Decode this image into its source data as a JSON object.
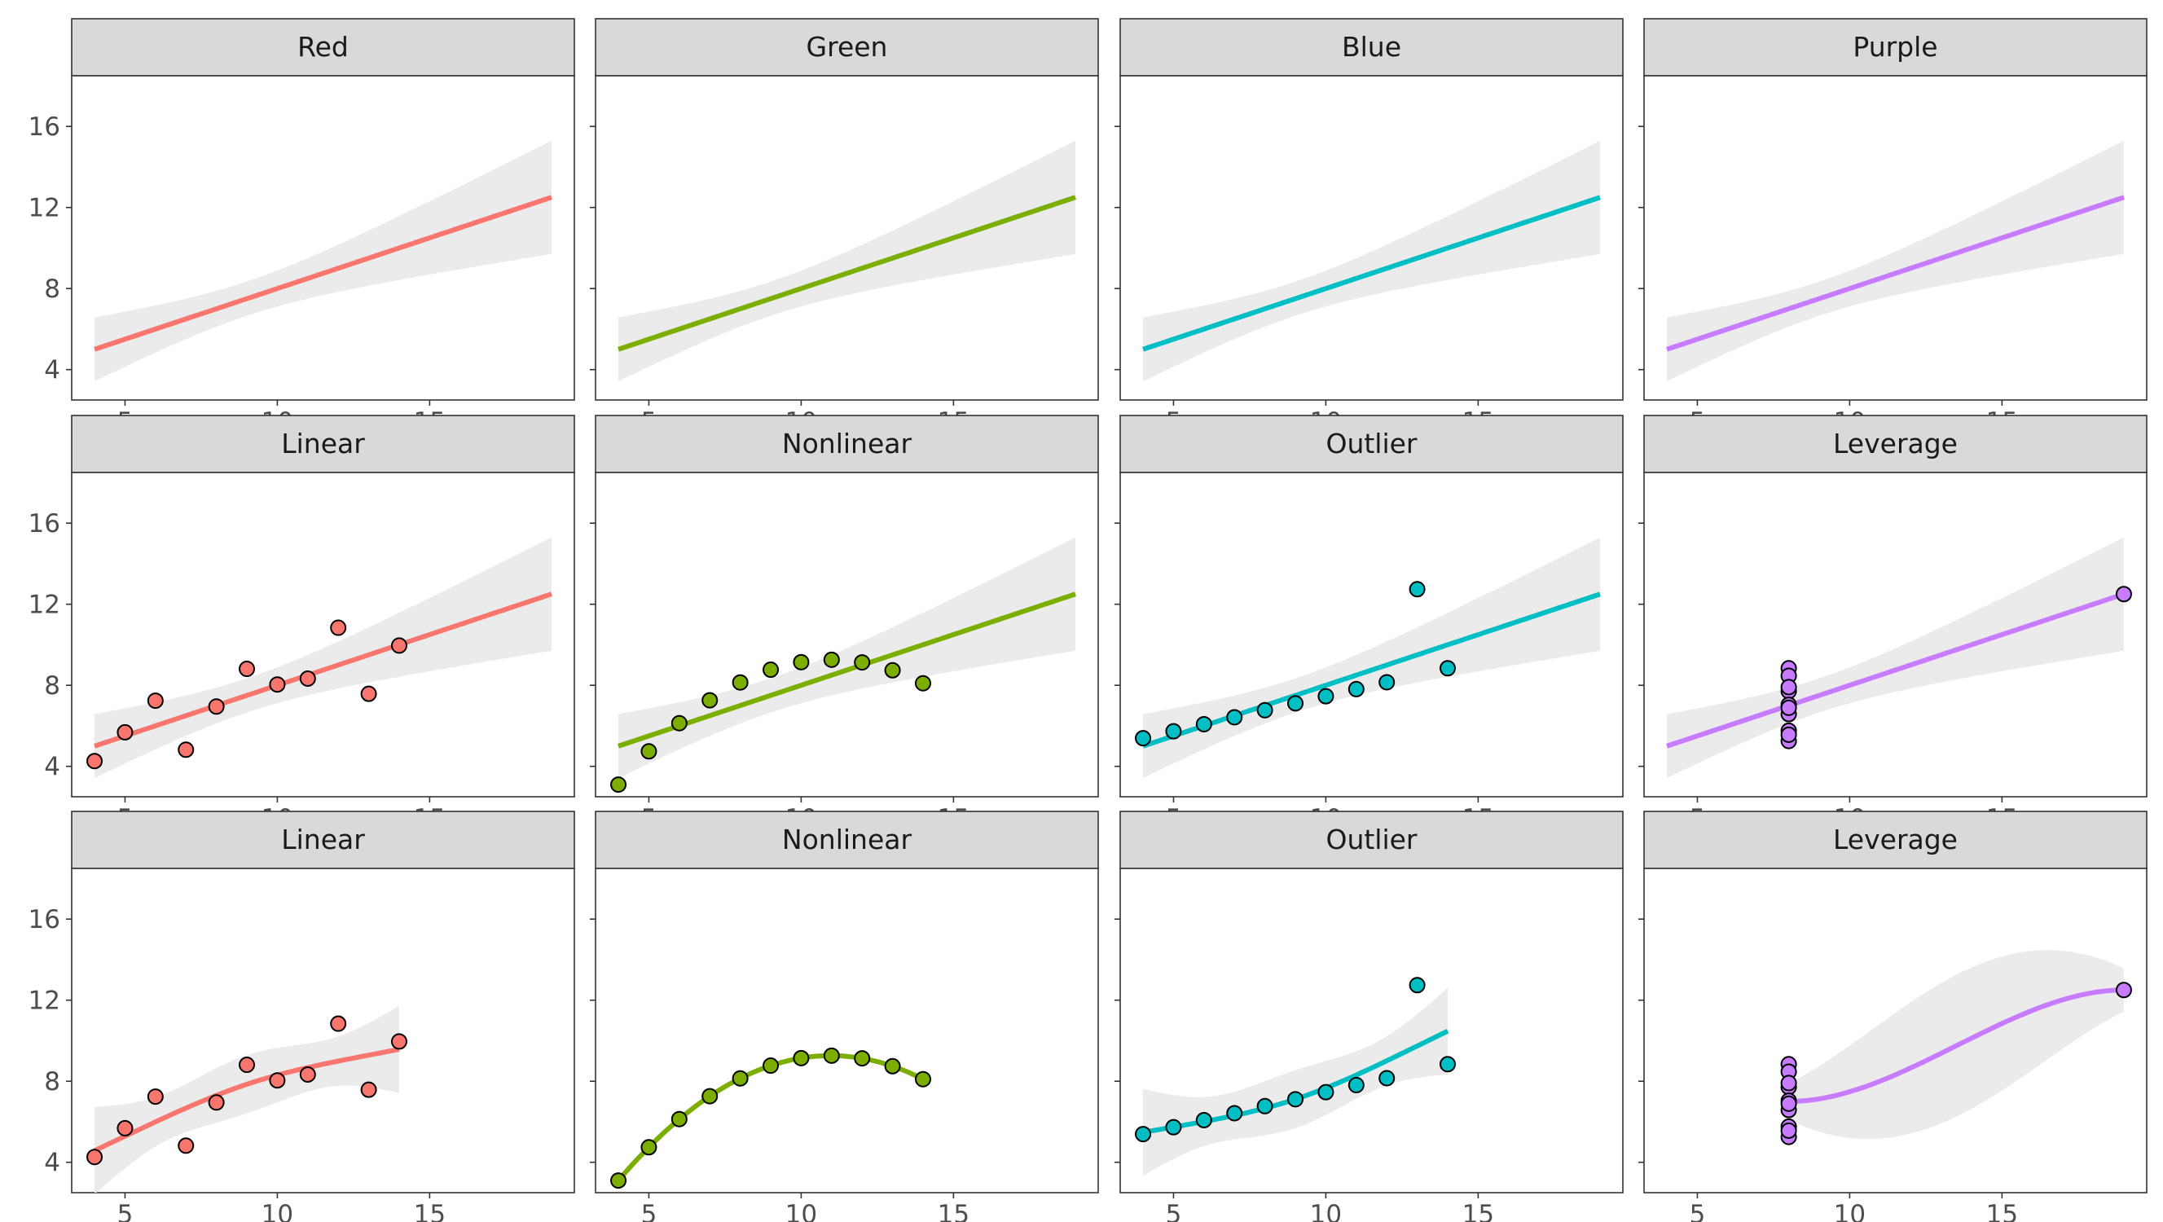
{
  "chart_data": {
    "type": "scatter",
    "layout": "facet grid, 3 rows x 4 columns, shared axes",
    "x_axis": {
      "range": [
        3.25,
        19.75
      ],
      "ticks": [
        5,
        10,
        15
      ]
    },
    "y_axis": {
      "range": [
        2.5,
        18.5
      ],
      "ticks": [
        4,
        8,
        12,
        16
      ]
    },
    "colors": {
      "Red": "#F8766D",
      "Green": "#7CAE00",
      "Blue": "#00BFC4",
      "Purple": "#C77CFF",
      "band": "#EBEBEB",
      "strip": "#D9D9D9"
    },
    "datasets": {
      "Linear": {
        "x": [
          10,
          8,
          13,
          9,
          11,
          14,
          6,
          4,
          12,
          7,
          5
        ],
        "y": [
          8.04,
          6.95,
          7.58,
          8.81,
          8.33,
          9.96,
          7.24,
          4.26,
          10.84,
          4.82,
          5.68
        ]
      },
      "Nonlinear": {
        "x": [
          10,
          8,
          13,
          9,
          11,
          14,
          6,
          4,
          12,
          7,
          5
        ],
        "y": [
          9.14,
          8.14,
          8.74,
          8.77,
          9.26,
          8.1,
          6.13,
          3.1,
          9.13,
          7.26,
          4.74
        ]
      },
      "Outlier": {
        "x": [
          10,
          8,
          13,
          9,
          11,
          14,
          6,
          4,
          12,
          7,
          5
        ],
        "y": [
          7.46,
          6.77,
          12.74,
          7.11,
          7.81,
          8.84,
          6.08,
          5.39,
          8.15,
          6.42,
          5.73
        ]
      },
      "Leverage": {
        "x": [
          8,
          8,
          8,
          8,
          8,
          8,
          8,
          19,
          8,
          8,
          8
        ],
        "y": [
          6.58,
          5.76,
          7.71,
          8.84,
          8.47,
          7.04,
          5.25,
          12.5,
          5.56,
          7.91,
          6.89
        ]
      }
    },
    "rows": [
      {
        "panels": [
          {
            "title": "Red",
            "color_key": "Red",
            "dataset": "Linear",
            "show_points": false,
            "fit": "lm"
          },
          {
            "title": "Green",
            "color_key": "Green",
            "dataset": "Nonlinear",
            "show_points": false,
            "fit": "lm"
          },
          {
            "title": "Blue",
            "color_key": "Blue",
            "dataset": "Outlier",
            "show_points": false,
            "fit": "lm"
          },
          {
            "title": "Purple",
            "color_key": "Purple",
            "dataset": "Leverage",
            "show_points": false,
            "fit": "lm"
          }
        ]
      },
      {
        "panels": [
          {
            "title": "Linear",
            "color_key": "Red",
            "dataset": "Linear",
            "show_points": true,
            "fit": "lm"
          },
          {
            "title": "Nonlinear",
            "color_key": "Green",
            "dataset": "Nonlinear",
            "show_points": true,
            "fit": "lm"
          },
          {
            "title": "Outlier",
            "color_key": "Blue",
            "dataset": "Outlier",
            "show_points": true,
            "fit": "lm"
          },
          {
            "title": "Leverage",
            "color_key": "Purple",
            "dataset": "Leverage",
            "show_points": true,
            "fit": "lm"
          }
        ]
      },
      {
        "panels": [
          {
            "title": "Linear",
            "color_key": "Red",
            "dataset": "Linear",
            "show_points": true,
            "fit": "curve"
          },
          {
            "title": "Nonlinear",
            "color_key": "Green",
            "dataset": "Nonlinear",
            "show_points": true,
            "fit": "curve"
          },
          {
            "title": "Outlier",
            "color_key": "Blue",
            "dataset": "Outlier",
            "show_points": true,
            "fit": "curve"
          },
          {
            "title": "Leverage",
            "color_key": "Purple",
            "dataset": "Leverage",
            "show_points": true,
            "fit": "curve"
          }
        ]
      }
    ]
  }
}
